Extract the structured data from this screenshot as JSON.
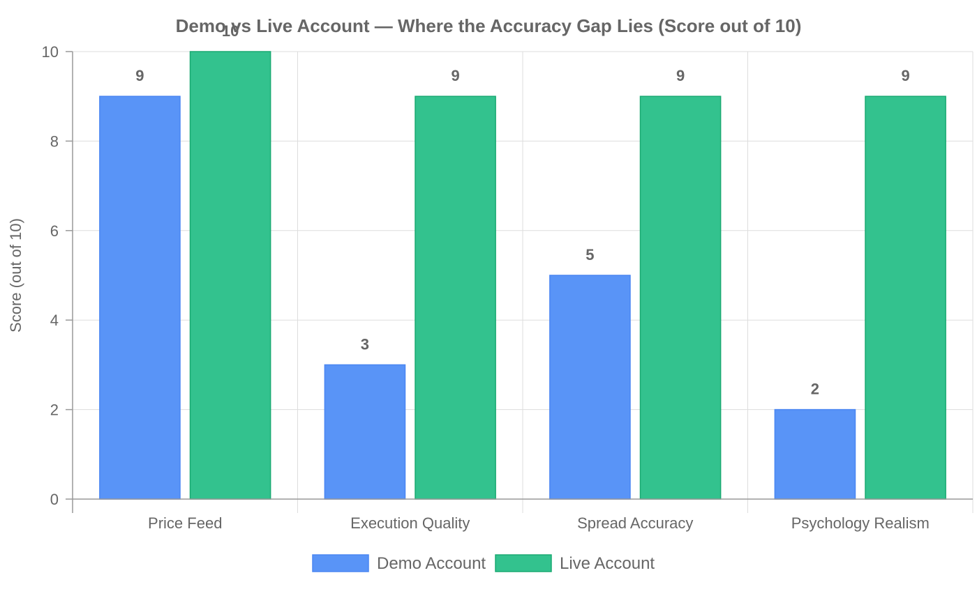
{
  "chart_data": {
    "type": "bar",
    "title": "Demo vs Live Account — Where the Accuracy Gap Lies (Score out of 10)",
    "xlabel": "",
    "ylabel": "Score (out of 10)",
    "ylim": [
      0,
      10
    ],
    "yticks": [
      0,
      2,
      4,
      6,
      8,
      10
    ],
    "grid": true,
    "legend_position": "bottom",
    "categories": [
      "Price Feed",
      "Execution Quality",
      "Spread Accuracy",
      "Psychology Realism"
    ],
    "series": [
      {
        "name": "Demo Account",
        "values": [
          9,
          3,
          5,
          2
        ],
        "color": "#4a86f2",
        "fill": "#5994f7"
      },
      {
        "name": "Live Account",
        "values": [
          10,
          9,
          9,
          9
        ],
        "color": "#1aaa72",
        "fill": "#33c28e"
      }
    ]
  }
}
